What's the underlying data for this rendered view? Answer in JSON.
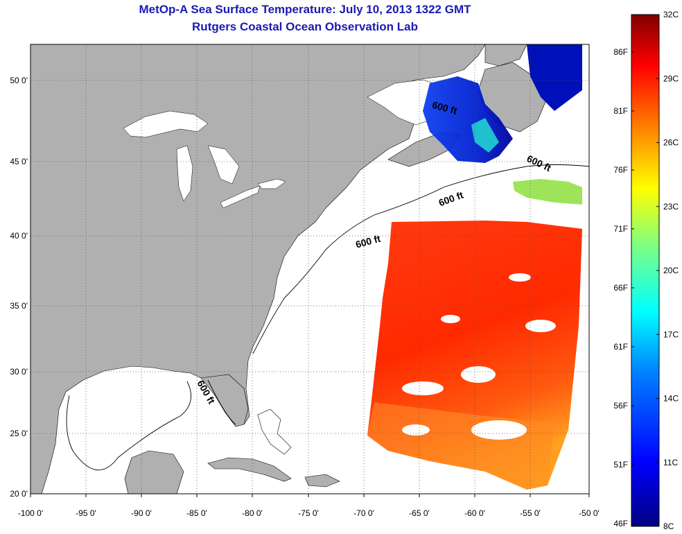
{
  "title": "MetOp-A Sea Surface Temperature:  July 10, 2013 1322 GMT",
  "subtitle": "Rutgers Coastal Ocean Observation Lab",
  "map": {
    "lon_labels": [
      "-100 0'",
      "-95 0'",
      "-90 0'",
      "-85 0'",
      "-80 0'",
      "-75 0'",
      "-70 0'",
      "-65 0'",
      "-60 0'",
      "-55 0'",
      "-50 0'"
    ],
    "lat_labels": [
      "50 0'",
      "45 0'",
      "40 0'",
      "35 0'",
      "30 0'",
      "25 0'",
      "20 0'"
    ],
    "contour_labels": [
      "600 ft",
      "600 ft",
      "600 ft",
      "600 ft",
      "600 ft"
    ],
    "colors": {
      "land": "#b0b0b0",
      "ocean_no_data": "#ffffff",
      "grid": "#555555"
    }
  },
  "colorbar": {
    "celsius_labels": [
      "32C",
      "29C",
      "26C",
      "23C",
      "20C",
      "17C",
      "14C",
      "11C",
      "8C"
    ],
    "fahrenheit_labels": [
      "86F",
      "81F",
      "76F",
      "71F",
      "66F",
      "61F",
      "56F",
      "51F",
      "46F"
    ],
    "stops": [
      "#000080",
      "#0000ff",
      "#0080ff",
      "#00ffff",
      "#80ff80",
      "#ffff00",
      "#ff8000",
      "#ff0000",
      "#800000"
    ]
  }
}
